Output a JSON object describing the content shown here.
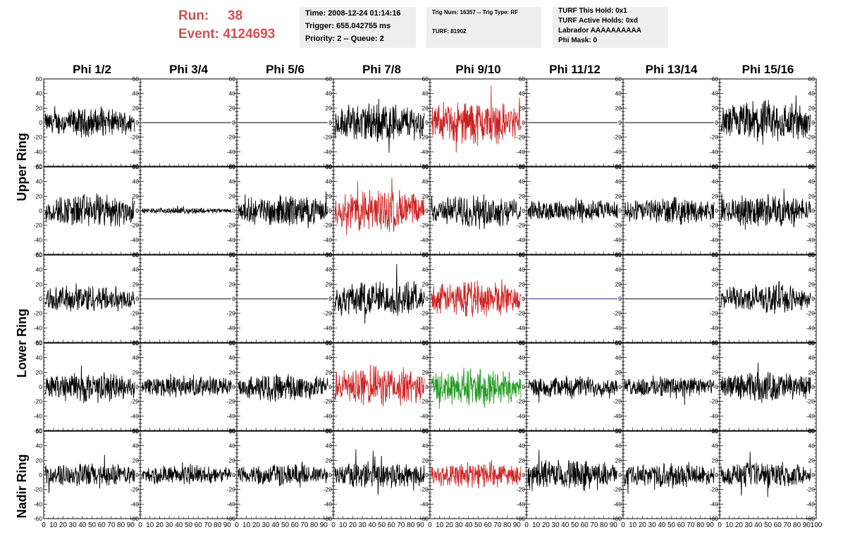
{
  "header": {
    "run_label": "Run:",
    "run_value": "38",
    "event_label": "Event:",
    "event_value": "4124693",
    "time_box": {
      "line1": "Time: 2008-12-24 01:14:16",
      "line2": "Trigger: 655.042755 ms",
      "line3": "Priority: 2 -- Queue: 2"
    },
    "trig_box": {
      "line1": "Trig Num: 16357 -- Trig Type: RF",
      "line2": "TURF: 81902"
    },
    "turf_box": {
      "line1": "TURF This Hold: 0x1",
      "line2": "TURF Active Holds: 0xd",
      "line3": "Labrador AAAAAAAAAA",
      "line4": "Phi Mask: 0"
    }
  },
  "chart_data": {
    "type": "line",
    "columns": [
      "Phi 1/2",
      "Phi 3/4",
      "Phi 5/6",
      "Phi 7/8",
      "Phi 9/10",
      "Phi 11/12",
      "Phi 13/14",
      "Phi 15/16"
    ],
    "ring_labels": [
      "Upper Ring",
      "Lower Ring",
      "Nadir Ring"
    ],
    "rows": [
      {
        "ring": "Upper Ring",
        "ylim": [
          -60,
          60
        ]
      },
      {
        "ring": "Upper Ring",
        "ylim": [
          -60,
          60
        ]
      },
      {
        "ring": "Lower Ring",
        "ylim": [
          -60,
          60
        ]
      },
      {
        "ring": "Lower Ring",
        "ylim": [
          -60,
          60
        ]
      },
      {
        "ring": "Nadir Ring",
        "ylim": [
          -60,
          60
        ]
      }
    ],
    "xlim": [
      0,
      100
    ],
    "x_ticks": [
      "0",
      "10",
      "20",
      "30",
      "40",
      "50",
      "60",
      "70",
      "80",
      "90",
      "100"
    ],
    "y_ticks": [
      "60",
      "40",
      "20",
      "0",
      "-20",
      "-40",
      "-60"
    ],
    "amplitude": [
      [
        14,
        0,
        0,
        20,
        22,
        0,
        0,
        22
      ],
      [
        17,
        3,
        15,
        22,
        16,
        12,
        13,
        16
      ],
      [
        14,
        0,
        0,
        18,
        18,
        0,
        0,
        14
      ],
      [
        15,
        11,
        14,
        20,
        19,
        11,
        11,
        15
      ],
      [
        12,
        10,
        11,
        14,
        13,
        15,
        12,
        13
      ]
    ],
    "trace_color": [
      [
        "#000000",
        "#000000",
        "#000000",
        "#000000",
        "#cc2222",
        "#000000",
        "#000000",
        "#000000"
      ],
      [
        "#000000",
        "#000000",
        "#000000",
        "#cc2222",
        "#000000",
        "#000000",
        "#000000",
        "#000000"
      ],
      [
        "#000000",
        "#000000",
        "#000000",
        "#000000",
        "#cc2222",
        "#2222aa",
        "#000000",
        "#000000"
      ],
      [
        "#000000",
        "#000000",
        "#000000",
        "#cc2222",
        "#229922",
        "#000000",
        "#000000",
        "#000000"
      ],
      [
        "#000000",
        "#000000",
        "#000000",
        "#000000",
        "#cc2222",
        "#000000",
        "#000000",
        "#000000"
      ]
    ],
    "grid": false
  }
}
